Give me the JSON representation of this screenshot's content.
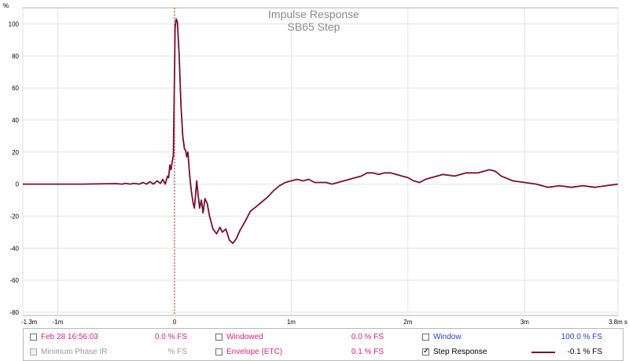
{
  "chart_data": {
    "type": "line",
    "title": "Impulse Response",
    "subtitle": "SB65 Step",
    "y_unit": "%",
    "x_unit": "s",
    "xlim": [
      -1.3,
      3.8
    ],
    "ylim": [
      -82,
      110
    ],
    "grid": true,
    "x_ticks": [
      {
        "v": -1.3,
        "label": "-1.3m"
      },
      {
        "v": -1.0,
        "label": "-1m"
      },
      {
        "v": 0,
        "label": "0"
      },
      {
        "v": 1,
        "label": "1m"
      },
      {
        "v": 2,
        "label": "2m"
      },
      {
        "v": 3,
        "label": "3m"
      },
      {
        "v": 3.8,
        "label": "3.8m s"
      }
    ],
    "y_ticks": [
      -80,
      -60,
      -40,
      -20,
      0,
      20,
      40,
      60,
      80,
      100
    ],
    "marker_x": 0,
    "series": [
      {
        "name": "Step Response",
        "color": "#7a0f2e",
        "points": [
          [
            -1.3,
            0
          ],
          [
            -0.8,
            0
          ],
          [
            -0.5,
            0.3
          ],
          [
            -0.45,
            0
          ],
          [
            -0.42,
            0.5
          ],
          [
            -0.38,
            0
          ],
          [
            -0.35,
            0.5
          ],
          [
            -0.3,
            0
          ],
          [
            -0.27,
            1
          ],
          [
            -0.24,
            0
          ],
          [
            -0.21,
            1.5
          ],
          [
            -0.18,
            0
          ],
          [
            -0.15,
            2
          ],
          [
            -0.12,
            0.5
          ],
          [
            -0.1,
            3
          ],
          [
            -0.08,
            0
          ],
          [
            -0.06,
            5
          ],
          [
            -0.05,
            4
          ],
          [
            -0.04,
            12
          ],
          [
            -0.03,
            9
          ],
          [
            -0.02,
            14
          ],
          [
            -0.01,
            18
          ],
          [
            0.0,
            70
          ],
          [
            0.005,
            98
          ],
          [
            0.015,
            103
          ],
          [
            0.025,
            101
          ],
          [
            0.04,
            80
          ],
          [
            0.055,
            50
          ],
          [
            0.07,
            30
          ],
          [
            0.085,
            22
          ],
          [
            0.095,
            21
          ],
          [
            0.105,
            17
          ],
          [
            0.115,
            20
          ],
          [
            0.13,
            5
          ],
          [
            0.145,
            -5
          ],
          [
            0.16,
            -12
          ],
          [
            0.17,
            -15
          ],
          [
            0.18,
            -7
          ],
          [
            0.19,
            2
          ],
          [
            0.2,
            -5
          ],
          [
            0.215,
            -15
          ],
          [
            0.23,
            -10
          ],
          [
            0.245,
            -18
          ],
          [
            0.26,
            -9
          ],
          [
            0.28,
            -12
          ],
          [
            0.3,
            -20
          ],
          [
            0.33,
            -28
          ],
          [
            0.36,
            -31
          ],
          [
            0.39,
            -27
          ],
          [
            0.41,
            -30
          ],
          [
            0.44,
            -28
          ],
          [
            0.47,
            -35
          ],
          [
            0.5,
            -37
          ],
          [
            0.53,
            -34
          ],
          [
            0.56,
            -29
          ],
          [
            0.6,
            -24
          ],
          [
            0.65,
            -17
          ],
          [
            0.7,
            -14
          ],
          [
            0.75,
            -11
          ],
          [
            0.8,
            -8
          ],
          [
            0.85,
            -4
          ],
          [
            0.9,
            -1
          ],
          [
            0.95,
            1
          ],
          [
            1.0,
            2
          ],
          [
            1.05,
            3
          ],
          [
            1.1,
            2
          ],
          [
            1.15,
            3
          ],
          [
            1.2,
            1
          ],
          [
            1.3,
            1
          ],
          [
            1.35,
            0
          ],
          [
            1.4,
            1
          ],
          [
            1.45,
            2
          ],
          [
            1.5,
            3
          ],
          [
            1.55,
            4
          ],
          [
            1.6,
            5
          ],
          [
            1.65,
            7
          ],
          [
            1.7,
            7
          ],
          [
            1.75,
            6
          ],
          [
            1.8,
            7
          ],
          [
            1.85,
            7
          ],
          [
            1.9,
            6
          ],
          [
            1.95,
            5
          ],
          [
            2.0,
            4
          ],
          [
            2.05,
            2
          ],
          [
            2.1,
            1
          ],
          [
            2.15,
            3
          ],
          [
            2.2,
            4
          ],
          [
            2.25,
            5
          ],
          [
            2.3,
            6
          ],
          [
            2.4,
            5
          ],
          [
            2.5,
            7
          ],
          [
            2.6,
            7
          ],
          [
            2.7,
            9
          ],
          [
            2.75,
            8
          ],
          [
            2.8,
            5
          ],
          [
            2.9,
            2
          ],
          [
            3.0,
            1
          ],
          [
            3.1,
            0
          ],
          [
            3.2,
            -2
          ],
          [
            3.3,
            -1
          ],
          [
            3.4,
            -2
          ],
          [
            3.5,
            -1
          ],
          [
            3.6,
            -2
          ],
          [
            3.7,
            -1
          ],
          [
            3.8,
            0
          ]
        ]
      }
    ]
  },
  "legend": {
    "row1": [
      {
        "label": "Feb 28 16:56:03",
        "value": "0.0 % FS",
        "color": "#e0207a",
        "checked": false
      },
      {
        "label": "Windowed",
        "value": "0.0 % FS",
        "color": "#e0207a",
        "checked": false
      },
      {
        "label": "Window",
        "value": "100.0 % FS",
        "color": "#2040e0",
        "checked": false
      }
    ],
    "row2": [
      {
        "label": "Minimum Phase IR",
        "value": "% FS",
        "color": "#999999",
        "checked": false,
        "disabled": true
      },
      {
        "label": "Envelope (ETC)",
        "value": "0.1 % FS",
        "color": "#e0207a",
        "checked": false
      },
      {
        "label": "Step Response",
        "value": "-0.1 % FS",
        "color": "#000000",
        "checked": true,
        "swatch": "#7a0f2e"
      }
    ]
  }
}
